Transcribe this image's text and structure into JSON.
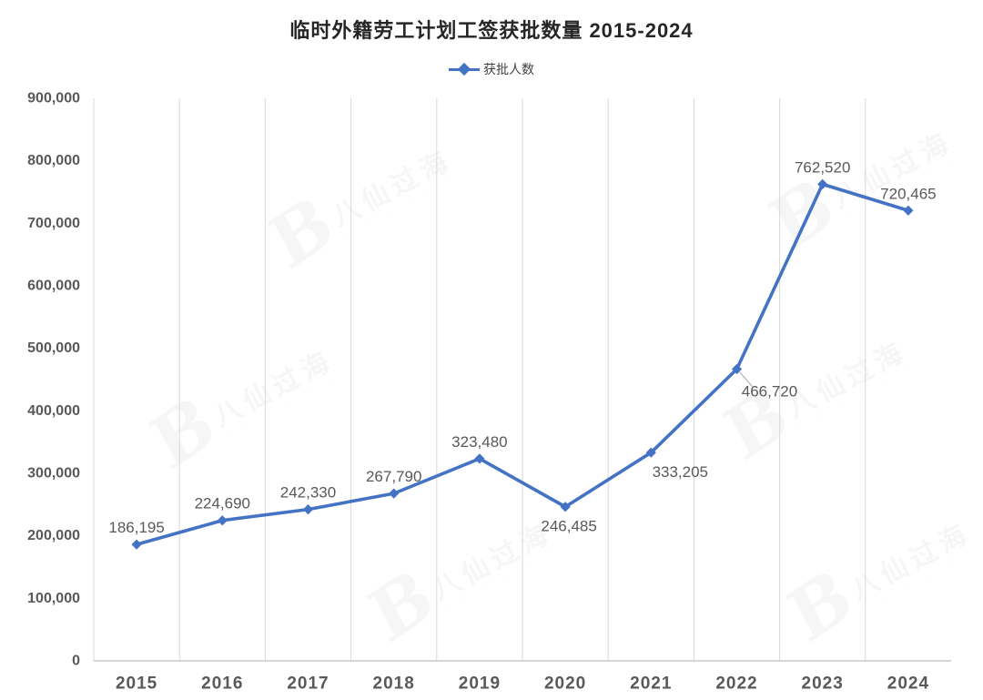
{
  "title": "临时外籍劳工计划工签获批数量 2015-2024",
  "legend": {
    "label": "获批人数",
    "marker": "diamond-on-line",
    "position": "top-center"
  },
  "watermark": {
    "logo_glyph": "B",
    "text": "八仙过海",
    "sub_text": "· · · · · ·"
  },
  "colors": {
    "series_line": "#4472C4",
    "marker": "#4472C4",
    "data_label": "#595959",
    "axis_label": "#595959",
    "gridline": "#D9D9D9",
    "axis_line": "#BFBFBF",
    "title": "#262626",
    "leader_line": "#A6A6A6"
  },
  "chart_data": {
    "type": "line",
    "title": "临时外籍劳工计划工签获批数量 2015-2024",
    "x": [
      "2015",
      "2016",
      "2017",
      "2018",
      "2019",
      "2020",
      "2021",
      "2022",
      "2023",
      "2024"
    ],
    "series": [
      {
        "name": "获批人数",
        "values": [
          186195,
          224690,
          242330,
          267790,
          323480,
          246485,
          333205,
          466720,
          762520,
          720465
        ],
        "labels": [
          "186,195",
          "224,690",
          "242,330",
          "267,790",
          "323,480",
          "246,485",
          "333,205",
          "466,720",
          "762,520",
          "720,465"
        ]
      }
    ],
    "label_placements": [
      "above",
      "above",
      "above",
      "above",
      "above",
      "below",
      "below-right",
      "leader-below-right",
      "above",
      "above"
    ],
    "ylim": [
      0,
      900000
    ],
    "y_tick_step": 100000,
    "y_tick_labels": [
      "0",
      "100,000",
      "200,000",
      "300,000",
      "400,000",
      "500,000",
      "600,000",
      "700,000",
      "800,000",
      "900,000"
    ],
    "xlabel": "",
    "ylabel": "",
    "grid": "vertical-only",
    "legend_position": "top-center",
    "marker_shape": "diamond"
  }
}
